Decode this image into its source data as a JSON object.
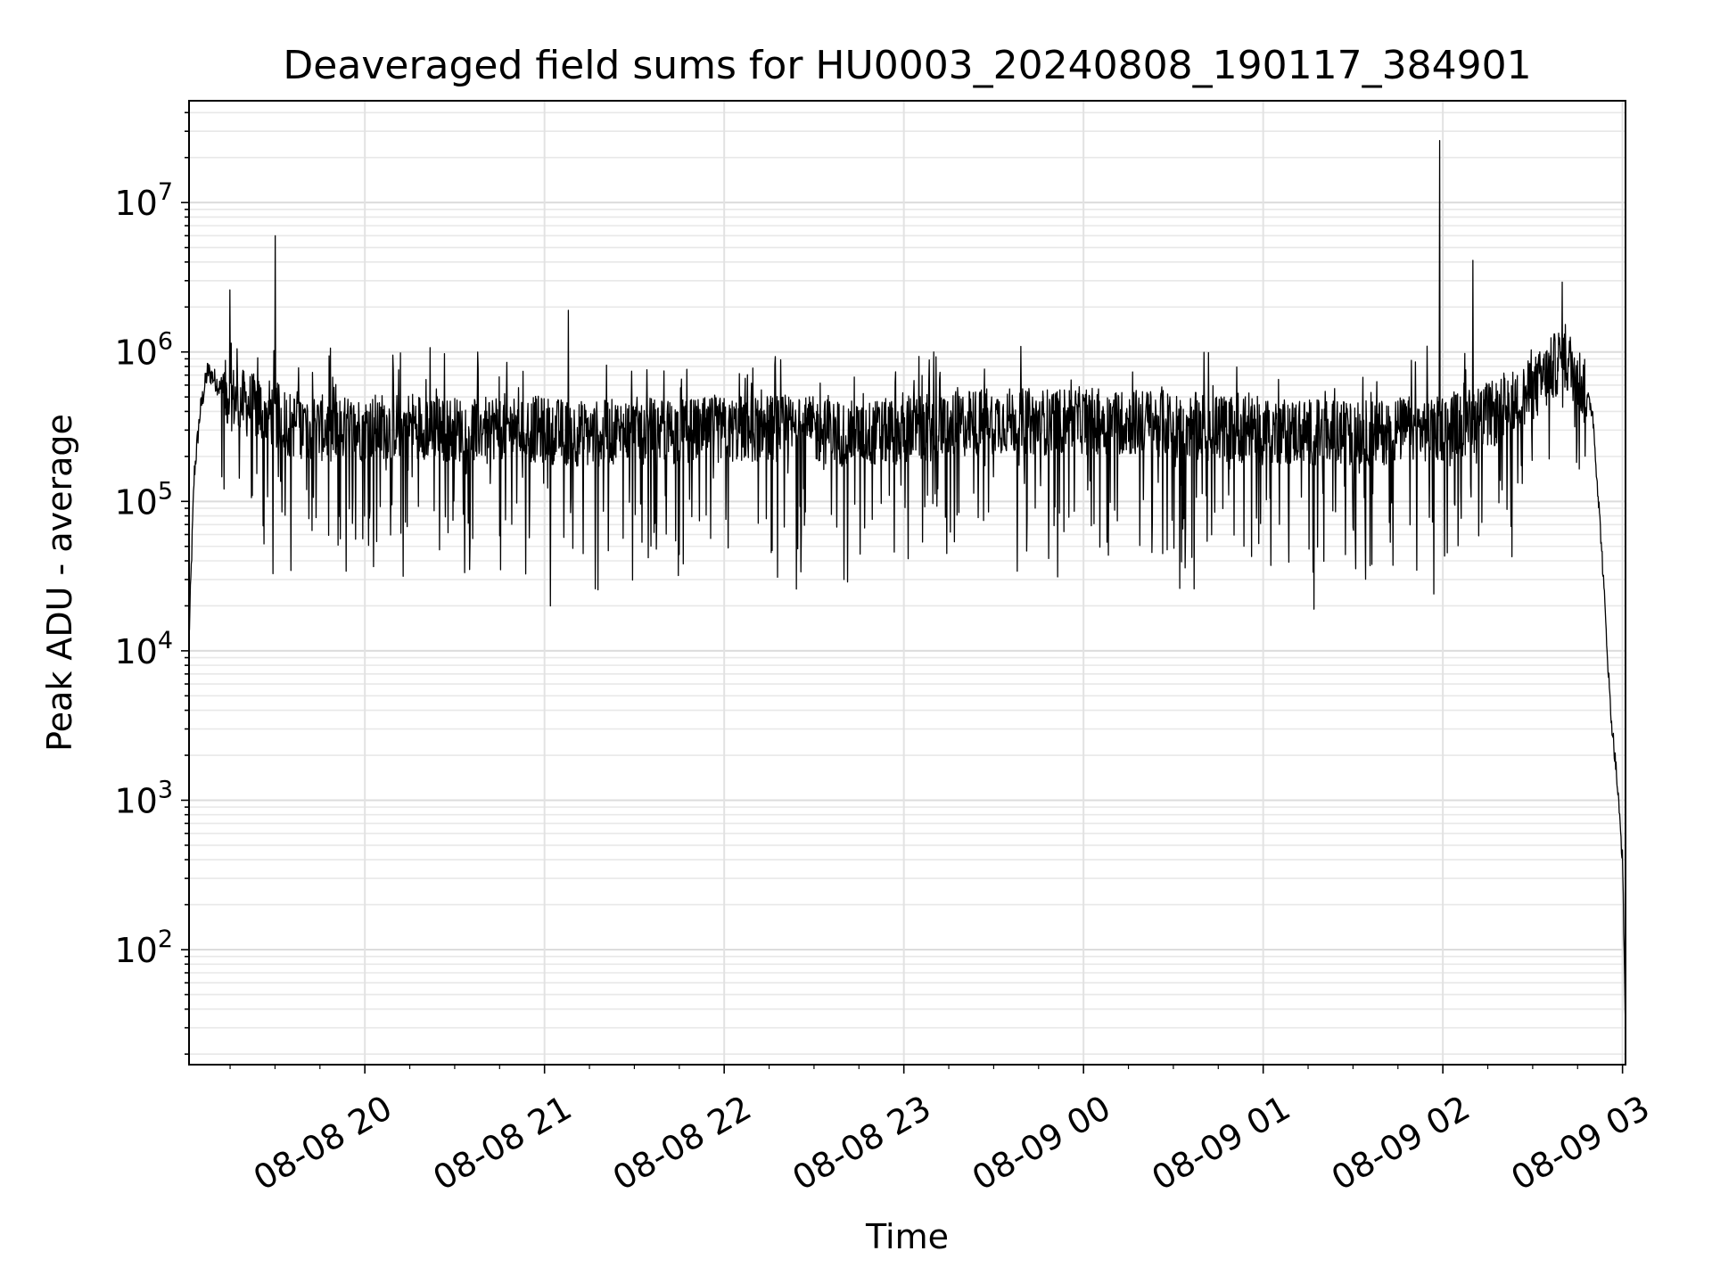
{
  "chart_data": {
    "type": "line",
    "title": "Deaveraged field sums for HU0003_20240808_190117_384901",
    "xlabel": "Time",
    "ylabel": "Peak ADU - average",
    "yscale": "log",
    "ylim": [
      17,
      48000000
    ],
    "xlim": [
      "2024-08-08 19:01:17",
      "2024-08-09 03:01:00"
    ],
    "grid": "major and minor, light gray",
    "line_color": "#000000",
    "x_ticks": [
      {
        "t": "2024-08-08 20:00",
        "label": "08-08 20"
      },
      {
        "t": "2024-08-08 21:00",
        "label": "08-08 21"
      },
      {
        "t": "2024-08-08 22:00",
        "label": "08-08 22"
      },
      {
        "t": "2024-08-08 23:00",
        "label": "08-08 23"
      },
      {
        "t": "2024-08-09 00:00",
        "label": "08-09 00"
      },
      {
        "t": "2024-08-09 01:00",
        "label": "08-09 01"
      },
      {
        "t": "2024-08-09 02:00",
        "label": "08-09 02"
      },
      {
        "t": "2024-08-09 03:00",
        "label": "08-09 03"
      }
    ],
    "y_ticks": [
      {
        "value": 100,
        "base": "10",
        "exp": "2"
      },
      {
        "value": 1000,
        "base": "10",
        "exp": "3"
      },
      {
        "value": 10000,
        "base": "10",
        "exp": "4"
      },
      {
        "value": 100000,
        "base": "10",
        "exp": "5"
      },
      {
        "value": 1000000,
        "base": "10",
        "exp": "6"
      },
      {
        "value": 10000000,
        "base": "10",
        "exp": "7"
      }
    ],
    "series": [
      {
        "x": [
          "2024-08-08 19:01:17",
          "2024-08-08 19:03:00",
          "2024-08-08 19:05:00",
          "2024-08-08 19:07:30",
          "2024-08-08 19:10:00",
          "2024-08-08 19:12:00",
          "2024-08-08 19:15:00",
          "2024-08-08 19:20:00",
          "2024-08-08 19:30:00",
          "2024-08-08 19:35:00",
          "2024-08-08 19:40:00",
          "2024-08-08 19:50:00",
          "2024-08-08 20:00:00",
          "2024-08-08 20:15:00",
          "2024-08-08 20:30:00",
          "2024-08-08 20:45:00",
          "2024-08-08 21:00:00",
          "2024-08-08 21:15:00",
          "2024-08-08 21:30:00",
          "2024-08-08 21:45:00",
          "2024-08-08 22:00:00",
          "2024-08-08 22:15:00",
          "2024-08-08 22:30:00",
          "2024-08-08 22:45:00",
          "2024-08-08 23:00:00",
          "2024-08-08 23:15:00",
          "2024-08-08 23:30:00",
          "2024-08-08 23:45:00",
          "2024-08-09 00:00:00",
          "2024-08-09 00:15:00",
          "2024-08-09 00:30:00",
          "2024-08-09 00:45:00",
          "2024-08-09 01:00:00",
          "2024-08-09 01:15:00",
          "2024-08-09 01:30:00",
          "2024-08-09 01:45:00",
          "2024-08-09 02:00:00",
          "2024-08-09 02:10:00",
          "2024-08-09 02:20:00",
          "2024-08-09 02:30:00",
          "2024-08-09 02:35:00",
          "2024-08-09 02:40:00",
          "2024-08-09 02:45:00",
          "2024-08-09 02:50:00",
          "2024-08-09 02:53:00",
          "2024-08-09 02:56:00",
          "2024-08-09 02:58:00",
          "2024-08-09 03:00:00",
          "2024-08-09 03:01:00"
        ],
        "y": [
          12000,
          150000,
          400000,
          750000,
          650000,
          550000,
          500000,
          450000,
          380000,
          330000,
          320000,
          300000,
          310000,
          330000,
          300000,
          320000,
          300000,
          280000,
          300000,
          290000,
          300000,
          310000,
          300000,
          280000,
          300000,
          320000,
          350000,
          340000,
          350000,
          340000,
          330000,
          310000,
          300000,
          290000,
          280000,
          300000,
          310000,
          350000,
          400000,
          550000,
          700000,
          950000,
          700000,
          400000,
          50000,
          4000,
          1500,
          400,
          30
        ],
        "spikes": [
          {
            "t": "2024-08-08 19:15:00",
            "peak": 2600000
          },
          {
            "t": "2024-08-08 19:30:00",
            "peak": 6000000
          },
          {
            "t": "2024-08-08 21:08:00",
            "peak": 1900000
          },
          {
            "t": "2024-08-09 01:59:00",
            "peak": 26000000
          },
          {
            "t": "2024-08-09 02:10:00",
            "peak": 4100000
          }
        ],
        "dips": [
          {
            "t": "2024-08-08 20:35:00",
            "trough": 35000
          },
          {
            "t": "2024-08-08 21:02:00",
            "trough": 20000
          },
          {
            "t": "2024-08-08 21:17:00",
            "trough": 26000
          },
          {
            "t": "2024-08-08 22:40:00",
            "trough": 30000
          },
          {
            "t": "2024-08-09 00:37:00",
            "trough": 26000
          },
          {
            "t": "2024-08-09 01:17:00",
            "trough": 19000
          },
          {
            "t": "2024-08-09 01:57:00",
            "trough": 24000
          }
        ]
      }
    ]
  }
}
